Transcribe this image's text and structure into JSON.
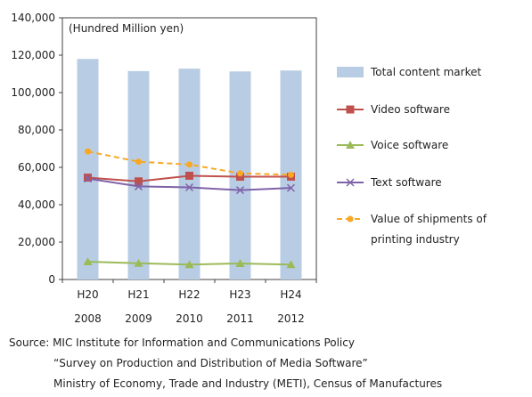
{
  "chart_data": {
    "type": "bar",
    "unit_label": "(Hundred  Million yen)",
    "ylim": [
      0,
      140000
    ],
    "yticks": [
      0,
      20000,
      40000,
      60000,
      80000,
      100000,
      120000,
      140000
    ],
    "ytick_labels": [
      "0",
      "20,000",
      "40,000",
      "60,000",
      "80,000",
      "100,000",
      "120,000",
      "140,000"
    ],
    "categories": [
      "H20",
      "H21",
      "H22",
      "H23",
      "H24"
    ],
    "categories_year": [
      "2008",
      "2009",
      "2010",
      "2011",
      "2012"
    ],
    "grid": false,
    "legend_position": "right",
    "series": [
      {
        "name": "Total content market",
        "kind": "bar",
        "color": "#b8cce4",
        "values": [
          118000,
          111500,
          112800,
          111300,
          111800
        ]
      },
      {
        "name": "Video software",
        "kind": "line",
        "marker": "square",
        "color": "#c0504d",
        "dash": false,
        "values": [
          54500,
          52500,
          55500,
          55000,
          55000
        ]
      },
      {
        "name": "Voice software",
        "kind": "line",
        "marker": "triangle",
        "color": "#9bbb59",
        "dash": false,
        "values": [
          9500,
          8700,
          8000,
          8600,
          8000
        ]
      },
      {
        "name": "Text software",
        "kind": "line",
        "marker": "x",
        "color": "#7f63a8",
        "dash": false,
        "values": [
          54000,
          49800,
          49300,
          47800,
          49000
        ]
      },
      {
        "name": "Value of shipments of printing industry",
        "kind": "line",
        "marker": "circle",
        "color": "#f9a825",
        "dash": true,
        "values": [
          68500,
          63000,
          61500,
          56800,
          56000
        ]
      }
    ]
  },
  "source": {
    "line1": "Source: MIC Institute for Information and Communications Policy",
    "line2": "“Survey on Production and Distribution of Media Software”",
    "line3": "Ministry of Economy, Trade and Industry (METI), Census of Manufactures"
  }
}
